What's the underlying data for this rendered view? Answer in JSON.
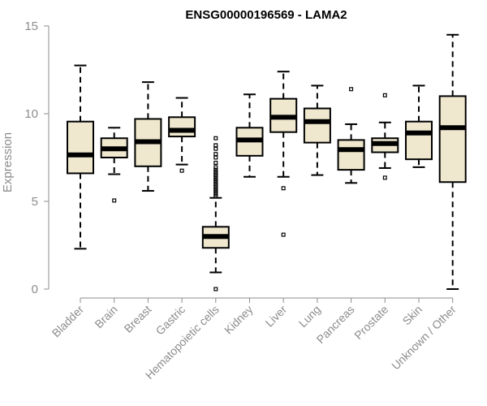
{
  "chart_data": {
    "type": "boxplot",
    "title": "ENSG00000196569 - LAMA2",
    "xlabel": "",
    "ylabel": "Expression",
    "ylim": [
      0,
      15
    ],
    "yticks": [
      0,
      5,
      10,
      15
    ],
    "box_fill": "#efe8cf",
    "line_color": "#000000",
    "axis_color": "#8c8c8c",
    "categories": [
      "Bladder",
      "Brain",
      "Breast",
      "Gastric",
      "Hematopoietic cells",
      "Kidney",
      "Liver",
      "Lung",
      "Pancreas",
      "Prostate",
      "Skin",
      "Unknown / Other"
    ],
    "boxes": [
      {
        "category": "Bladder",
        "whisker_low": 2.3,
        "q1": 6.6,
        "median": 7.65,
        "q3": 9.55,
        "whisker_high": 12.75,
        "outliers": []
      },
      {
        "category": "Brain",
        "whisker_low": 6.55,
        "q1": 7.5,
        "median": 8.0,
        "q3": 8.6,
        "whisker_high": 9.2,
        "outliers": [
          5.05
        ]
      },
      {
        "category": "Breast",
        "whisker_low": 5.6,
        "q1": 7.0,
        "median": 8.4,
        "q3": 9.7,
        "whisker_high": 11.8,
        "outliers": []
      },
      {
        "category": "Gastric",
        "whisker_low": 7.1,
        "q1": 8.7,
        "median": 9.05,
        "q3": 9.8,
        "whisker_high": 10.9,
        "outliers": [
          6.75
        ]
      },
      {
        "category": "Hematopoietic cells",
        "whisker_low": 0.95,
        "q1": 2.35,
        "median": 3.0,
        "q3": 3.55,
        "whisker_high": 5.2,
        "outliers": [
          0.0,
          5.3,
          5.4,
          5.5,
          5.6,
          5.7,
          5.8,
          5.9,
          6.0,
          6.1,
          6.2,
          6.3,
          6.4,
          6.5,
          6.6,
          6.7,
          6.8,
          6.95,
          7.2,
          7.5,
          7.7,
          8.0,
          8.2,
          8.6
        ]
      },
      {
        "category": "Kidney",
        "whisker_low": 6.4,
        "q1": 7.6,
        "median": 8.5,
        "q3": 9.2,
        "whisker_high": 11.1,
        "outliers": []
      },
      {
        "category": "Liver",
        "whisker_low": 6.4,
        "q1": 8.95,
        "median": 9.8,
        "q3": 10.85,
        "whisker_high": 12.4,
        "outliers": [
          5.75,
          3.1
        ]
      },
      {
        "category": "Lung",
        "whisker_low": 6.5,
        "q1": 8.35,
        "median": 9.55,
        "q3": 10.3,
        "whisker_high": 11.6,
        "outliers": []
      },
      {
        "category": "Pancreas",
        "whisker_low": 6.05,
        "q1": 6.8,
        "median": 7.95,
        "q3": 8.5,
        "whisker_high": 9.4,
        "outliers": [
          11.4
        ]
      },
      {
        "category": "Prostate",
        "whisker_low": 6.9,
        "q1": 7.8,
        "median": 8.3,
        "q3": 8.6,
        "whisker_high": 9.5,
        "outliers": [
          11.05,
          6.35
        ]
      },
      {
        "category": "Skin",
        "whisker_low": 6.95,
        "q1": 7.4,
        "median": 8.9,
        "q3": 9.55,
        "whisker_high": 11.6,
        "outliers": []
      },
      {
        "category": "Unknown / Other",
        "whisker_low": 0.0,
        "q1": 6.1,
        "median": 9.2,
        "q3": 11.0,
        "whisker_high": 14.5,
        "outliers": []
      }
    ]
  }
}
